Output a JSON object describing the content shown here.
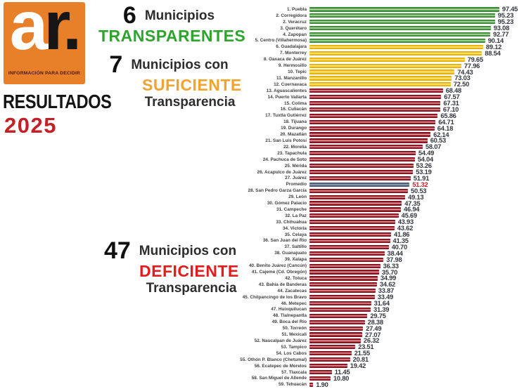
{
  "brand": {
    "logo_a": "a",
    "logo_r": "r.",
    "tagline": "INFORMACIÓN PARA DECIDIR",
    "results_label": "RESULTADOS",
    "year": "2025",
    "logo_bg": "#e8802a",
    "year_color": "#c42127"
  },
  "annotations": [
    {
      "count": "6",
      "line1": "Municipios",
      "line2": "TRANSPARENTES",
      "line3": "",
      "line2_color": "#2ca52b"
    },
    {
      "count": "7",
      "line1": "Municipios con",
      "line2": "SUFICIENTE",
      "line3": "Transparencia",
      "line2_color": "#f2a22e"
    },
    {
      "count": "47",
      "line1": "Municipios con",
      "line2": "DEFICIENTE",
      "line3": "Transparencia",
      "line2_color": "#e21c1c"
    }
  ],
  "chart_data": {
    "type": "bar",
    "orientation": "horizontal",
    "title": "Resultados 2025 - ranking de transparencia municipal",
    "xlim": [
      0,
      100
    ],
    "grid": false,
    "legend_position": "none",
    "colors": {
      "transparente": "#4a9d42",
      "suficiente": "#f6c10c",
      "deficiente": "#9e1724",
      "promedio": "#566a80"
    },
    "rows": [
      {
        "label": "1. Puebla",
        "value": 97.45,
        "tier": "transparente"
      },
      {
        "label": "2. Corregidora",
        "value": 95.23,
        "tier": "transparente"
      },
      {
        "label": "2. Veracruz",
        "value": 95.23,
        "tier": "transparente"
      },
      {
        "label": "3. Querétaro",
        "value": 93.08,
        "tier": "transparente"
      },
      {
        "label": "4. Zapopan",
        "value": 92.77,
        "tier": "transparente"
      },
      {
        "label": "5. Centro (Villahermosa)",
        "value": 90.14,
        "tier": "transparente"
      },
      {
        "label": "6. Guadalajara",
        "value": 89.12,
        "tier": "suficiente"
      },
      {
        "label": "7. Monterrey",
        "value": 88.54,
        "tier": "suficiente"
      },
      {
        "label": "8. Oaxaca de Juárez",
        "value": 79.65,
        "tier": "suficiente"
      },
      {
        "label": "9. Hermosillo",
        "value": 77.96,
        "tier": "suficiente"
      },
      {
        "label": "10. Tepic",
        "value": 74.43,
        "tier": "suficiente"
      },
      {
        "label": "11. Manzanillo",
        "value": 73.03,
        "tier": "suficiente"
      },
      {
        "label": "12. Cuernavaca",
        "value": 72.5,
        "tier": "suficiente"
      },
      {
        "label": "13. Aguascalientes",
        "value": 68.48,
        "tier": "deficiente"
      },
      {
        "label": "14. Puerto Vallarta",
        "value": 67.57,
        "tier": "deficiente"
      },
      {
        "label": "15. Colima",
        "value": 67.31,
        "tier": "deficiente"
      },
      {
        "label": "16. Culiacán",
        "value": 67.1,
        "tier": "deficiente"
      },
      {
        "label": "17. Tuxtla Gutiérrez",
        "value": 65.86,
        "tier": "deficiente"
      },
      {
        "label": "18. Tijuana",
        "value": 64.71,
        "tier": "deficiente"
      },
      {
        "label": "19. Durango",
        "value": 64.18,
        "tier": "deficiente"
      },
      {
        "label": "20. Mazatlán",
        "value": 62.14,
        "tier": "deficiente"
      },
      {
        "label": "21. San Luis Potosí",
        "value": 60.53,
        "tier": "deficiente"
      },
      {
        "label": "22. Morelia",
        "value": 58.07,
        "tier": "deficiente"
      },
      {
        "label": "23. Tapachula",
        "value": 54.49,
        "tier": "deficiente"
      },
      {
        "label": "24. Pachuca de Soto",
        "value": 54.04,
        "tier": "deficiente"
      },
      {
        "label": "25. Mérida",
        "value": 53.26,
        "tier": "deficiente"
      },
      {
        "label": "26. Acapulco de Juárez",
        "value": 53.19,
        "tier": "deficiente"
      },
      {
        "label": "27. Juárez",
        "value": 51.91,
        "tier": "deficiente"
      },
      {
        "label": "Promedio",
        "value": 51.32,
        "tier": "promedio"
      },
      {
        "label": "28. San Pedro Garza García",
        "value": 50.53,
        "tier": "deficiente"
      },
      {
        "label": "29. León",
        "value": 49.13,
        "tier": "deficiente"
      },
      {
        "label": "30. Gómez Palacio",
        "value": 47.35,
        "tier": "deficiente"
      },
      {
        "label": "31. Campeche",
        "value": 46.94,
        "tier": "deficiente"
      },
      {
        "label": "32. La Paz",
        "value": 45.69,
        "tier": "deficiente"
      },
      {
        "label": "33. Chihuahua",
        "value": 43.93,
        "tier": "deficiente"
      },
      {
        "label": "34. Victoria",
        "value": 43.62,
        "tier": "deficiente"
      },
      {
        "label": "35. Celaya",
        "value": 41.86,
        "tier": "deficiente"
      },
      {
        "label": "36. San Juan del Río",
        "value": 41.35,
        "tier": "deficiente"
      },
      {
        "label": "37. Saltillo",
        "value": 40.7,
        "tier": "deficiente"
      },
      {
        "label": "38. Guanajuato",
        "value": 38.44,
        "tier": "deficiente"
      },
      {
        "label": "39. Xalapa",
        "value": 37.98,
        "tier": "deficiente"
      },
      {
        "label": "40. Benito Juárez (Cancún)",
        "value": 36.33,
        "tier": "deficiente"
      },
      {
        "label": "41. Cajeme (Cd. Obregón)",
        "value": 35.7,
        "tier": "deficiente"
      },
      {
        "label": "42. Toluca",
        "value": 34.99,
        "tier": "deficiente"
      },
      {
        "label": "43. Bahía de Banderas",
        "value": 34.62,
        "tier": "deficiente"
      },
      {
        "label": "44. Zacatecas",
        "value": 33.87,
        "tier": "deficiente"
      },
      {
        "label": "45. Chilpancingo de los Bravo",
        "value": 33.49,
        "tier": "deficiente"
      },
      {
        "label": "46. Metepec",
        "value": 31.64,
        "tier": "deficiente"
      },
      {
        "label": "47. Huixquilucan",
        "value": 31.39,
        "tier": "deficiente"
      },
      {
        "label": "48. Tlalnepantla",
        "value": 29.75,
        "tier": "deficiente"
      },
      {
        "label": "49. Boca del Río",
        "value": 28.38,
        "tier": "deficiente"
      },
      {
        "label": "50. Torreón",
        "value": 27.49,
        "tier": "deficiente"
      },
      {
        "label": "51. Mexicali",
        "value": 27.07,
        "tier": "deficiente"
      },
      {
        "label": "52. Naucalpan de Juárez",
        "value": 26.32,
        "tier": "deficiente"
      },
      {
        "label": "53. Tampico",
        "value": 23.51,
        "tier": "deficiente"
      },
      {
        "label": "54. Los Cabos",
        "value": 21.55,
        "tier": "deficiente"
      },
      {
        "label": "55. Othón P. Blanco (Chetumal)",
        "value": 20.81,
        "tier": "deficiente"
      },
      {
        "label": "56. Ecatepec de Morelos",
        "value": 19.42,
        "tier": "deficiente"
      },
      {
        "label": "57. Tlaxcala",
        "value": 11.45,
        "tier": "deficiente"
      },
      {
        "label": "58. San Miguel de Allende",
        "value": 10.8,
        "tier": "deficiente"
      },
      {
        "label": "59. Tehuacán",
        "value": 1.9,
        "tier": "deficiente"
      }
    ]
  }
}
